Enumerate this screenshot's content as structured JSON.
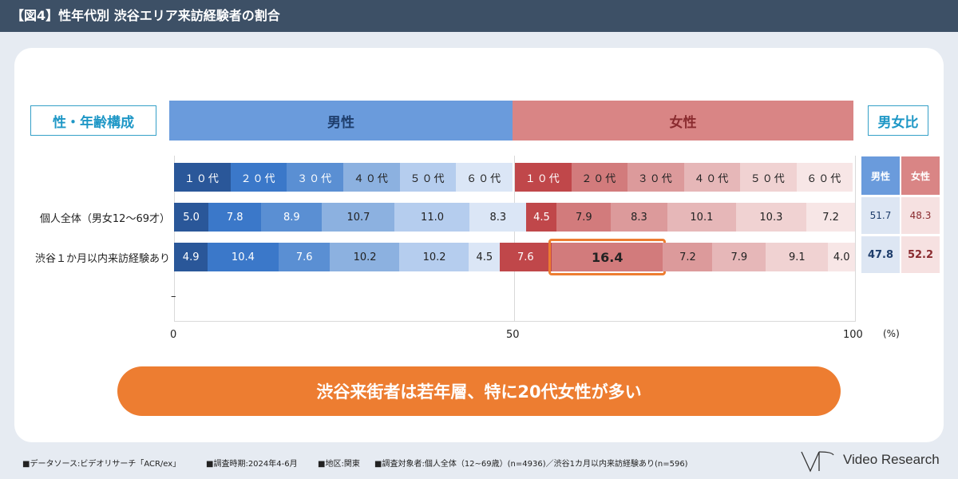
{
  "header": {
    "title": "【図4】性年代別 渋谷エリア来訪経験者の割合"
  },
  "labels": {
    "composition": "性・年齢構成",
    "male": "男性",
    "female": "女性",
    "ratio": "男女比",
    "ratio_male": "男性",
    "ratio_female": "女性",
    "unit": "(%)",
    "dash": "–"
  },
  "chart_data": {
    "type": "bar",
    "stacked": true,
    "horizontal": true,
    "xlim": [
      0,
      100
    ],
    "xticks": [
      "0",
      "50",
      "100"
    ],
    "categories": [
      "個人全体（男女12～69才）",
      "渋谷１か月以内来訪経験あり"
    ],
    "series": [
      {
        "name": "１０代",
        "gender": "男性",
        "values": [
          5.0,
          4.9
        ],
        "labels": [
          "5.0",
          "4.9"
        ],
        "color": "#2a5799",
        "text_color": "#ffffff"
      },
      {
        "name": "２０代",
        "gender": "男性",
        "values": [
          7.8,
          10.4
        ],
        "labels": [
          "7.8",
          "10.4"
        ],
        "color": "#3b78c9",
        "text_color": "#ffffff"
      },
      {
        "name": "３０代",
        "gender": "男性",
        "values": [
          8.9,
          7.6
        ],
        "labels": [
          "8.9",
          "7.6"
        ],
        "color": "#5a8fd3",
        "text_color": "#ffffff"
      },
      {
        "name": "４０代",
        "gender": "男性",
        "values": [
          10.7,
          10.2
        ],
        "labels": [
          "10.7",
          "10.2"
        ],
        "color": "#8cb1e0",
        "text_color": "#222222"
      },
      {
        "name": "５０代",
        "gender": "男性",
        "values": [
          11.0,
          10.2
        ],
        "labels": [
          "11.0",
          "10.2"
        ],
        "color": "#b5cdee",
        "text_color": "#222222"
      },
      {
        "name": "６０代",
        "gender": "男性",
        "values": [
          8.3,
          4.5
        ],
        "labels": [
          "8.3",
          "4.5"
        ],
        "color": "#dbe6f6",
        "text_color": "#222222"
      },
      {
        "name": "１０代",
        "gender": "女性",
        "values": [
          4.5,
          7.6
        ],
        "labels": [
          "4.5",
          "7.6"
        ],
        "color": "#c0474a",
        "text_color": "#ffffff"
      },
      {
        "name": "２０代",
        "gender": "女性",
        "values": [
          7.9,
          16.4
        ],
        "labels": [
          "7.9",
          "16.4"
        ],
        "color": "#d27b7c",
        "text_color": "#222222"
      },
      {
        "name": "３０代",
        "gender": "女性",
        "values": [
          8.3,
          7.2
        ],
        "labels": [
          "8.3",
          "7.2"
        ],
        "color": "#dc9a9b",
        "text_color": "#222222"
      },
      {
        "name": "４０代",
        "gender": "女性",
        "values": [
          10.1,
          7.9
        ],
        "labels": [
          "10.1",
          "7.9"
        ],
        "color": "#e6b7b8",
        "text_color": "#222222"
      },
      {
        "name": "５０代",
        "gender": "女性",
        "values": [
          10.3,
          9.1
        ],
        "labels": [
          "10.3",
          "9.1"
        ],
        "color": "#f0d2d2",
        "text_color": "#222222"
      },
      {
        "name": "６０代",
        "gender": "女性",
        "values": [
          7.2,
          4.0
        ],
        "labels": [
          "7.2",
          "4.0"
        ],
        "color": "#f7e6e6",
        "text_color": "#222222"
      }
    ],
    "gender_ratio": {
      "male": [
        {
          "value": 51.7,
          "label": "51.7"
        },
        {
          "value": 47.8,
          "label": "47.8"
        }
      ],
      "female": [
        {
          "value": 48.3,
          "label": "48.3"
        },
        {
          "value": 52.2,
          "label": "52.2"
        }
      ]
    },
    "highlight": {
      "row": 1,
      "series": 7
    }
  },
  "colors": {
    "male_header": "#6a9bdc",
    "female_header": "#d98585",
    "male_header_text": "#1e3d6b",
    "female_header_text": "#8a2b2f",
    "highlight": "#ed7d31"
  },
  "banner": {
    "text": "渋谷来街者は若年層、特に20代女性が多い"
  },
  "footer": {
    "source": "■データソース:ビデオリサーチ「ACR/ex」",
    "period": "■調査時期:2024年4-6月",
    "area": "■地区:関東",
    "target": "■調査対象者:個人全体（12~69歳）(n=4936)／渋谷1カ月以内来訪経験あり(n=596)"
  },
  "logo": {
    "text": "Video Research"
  }
}
